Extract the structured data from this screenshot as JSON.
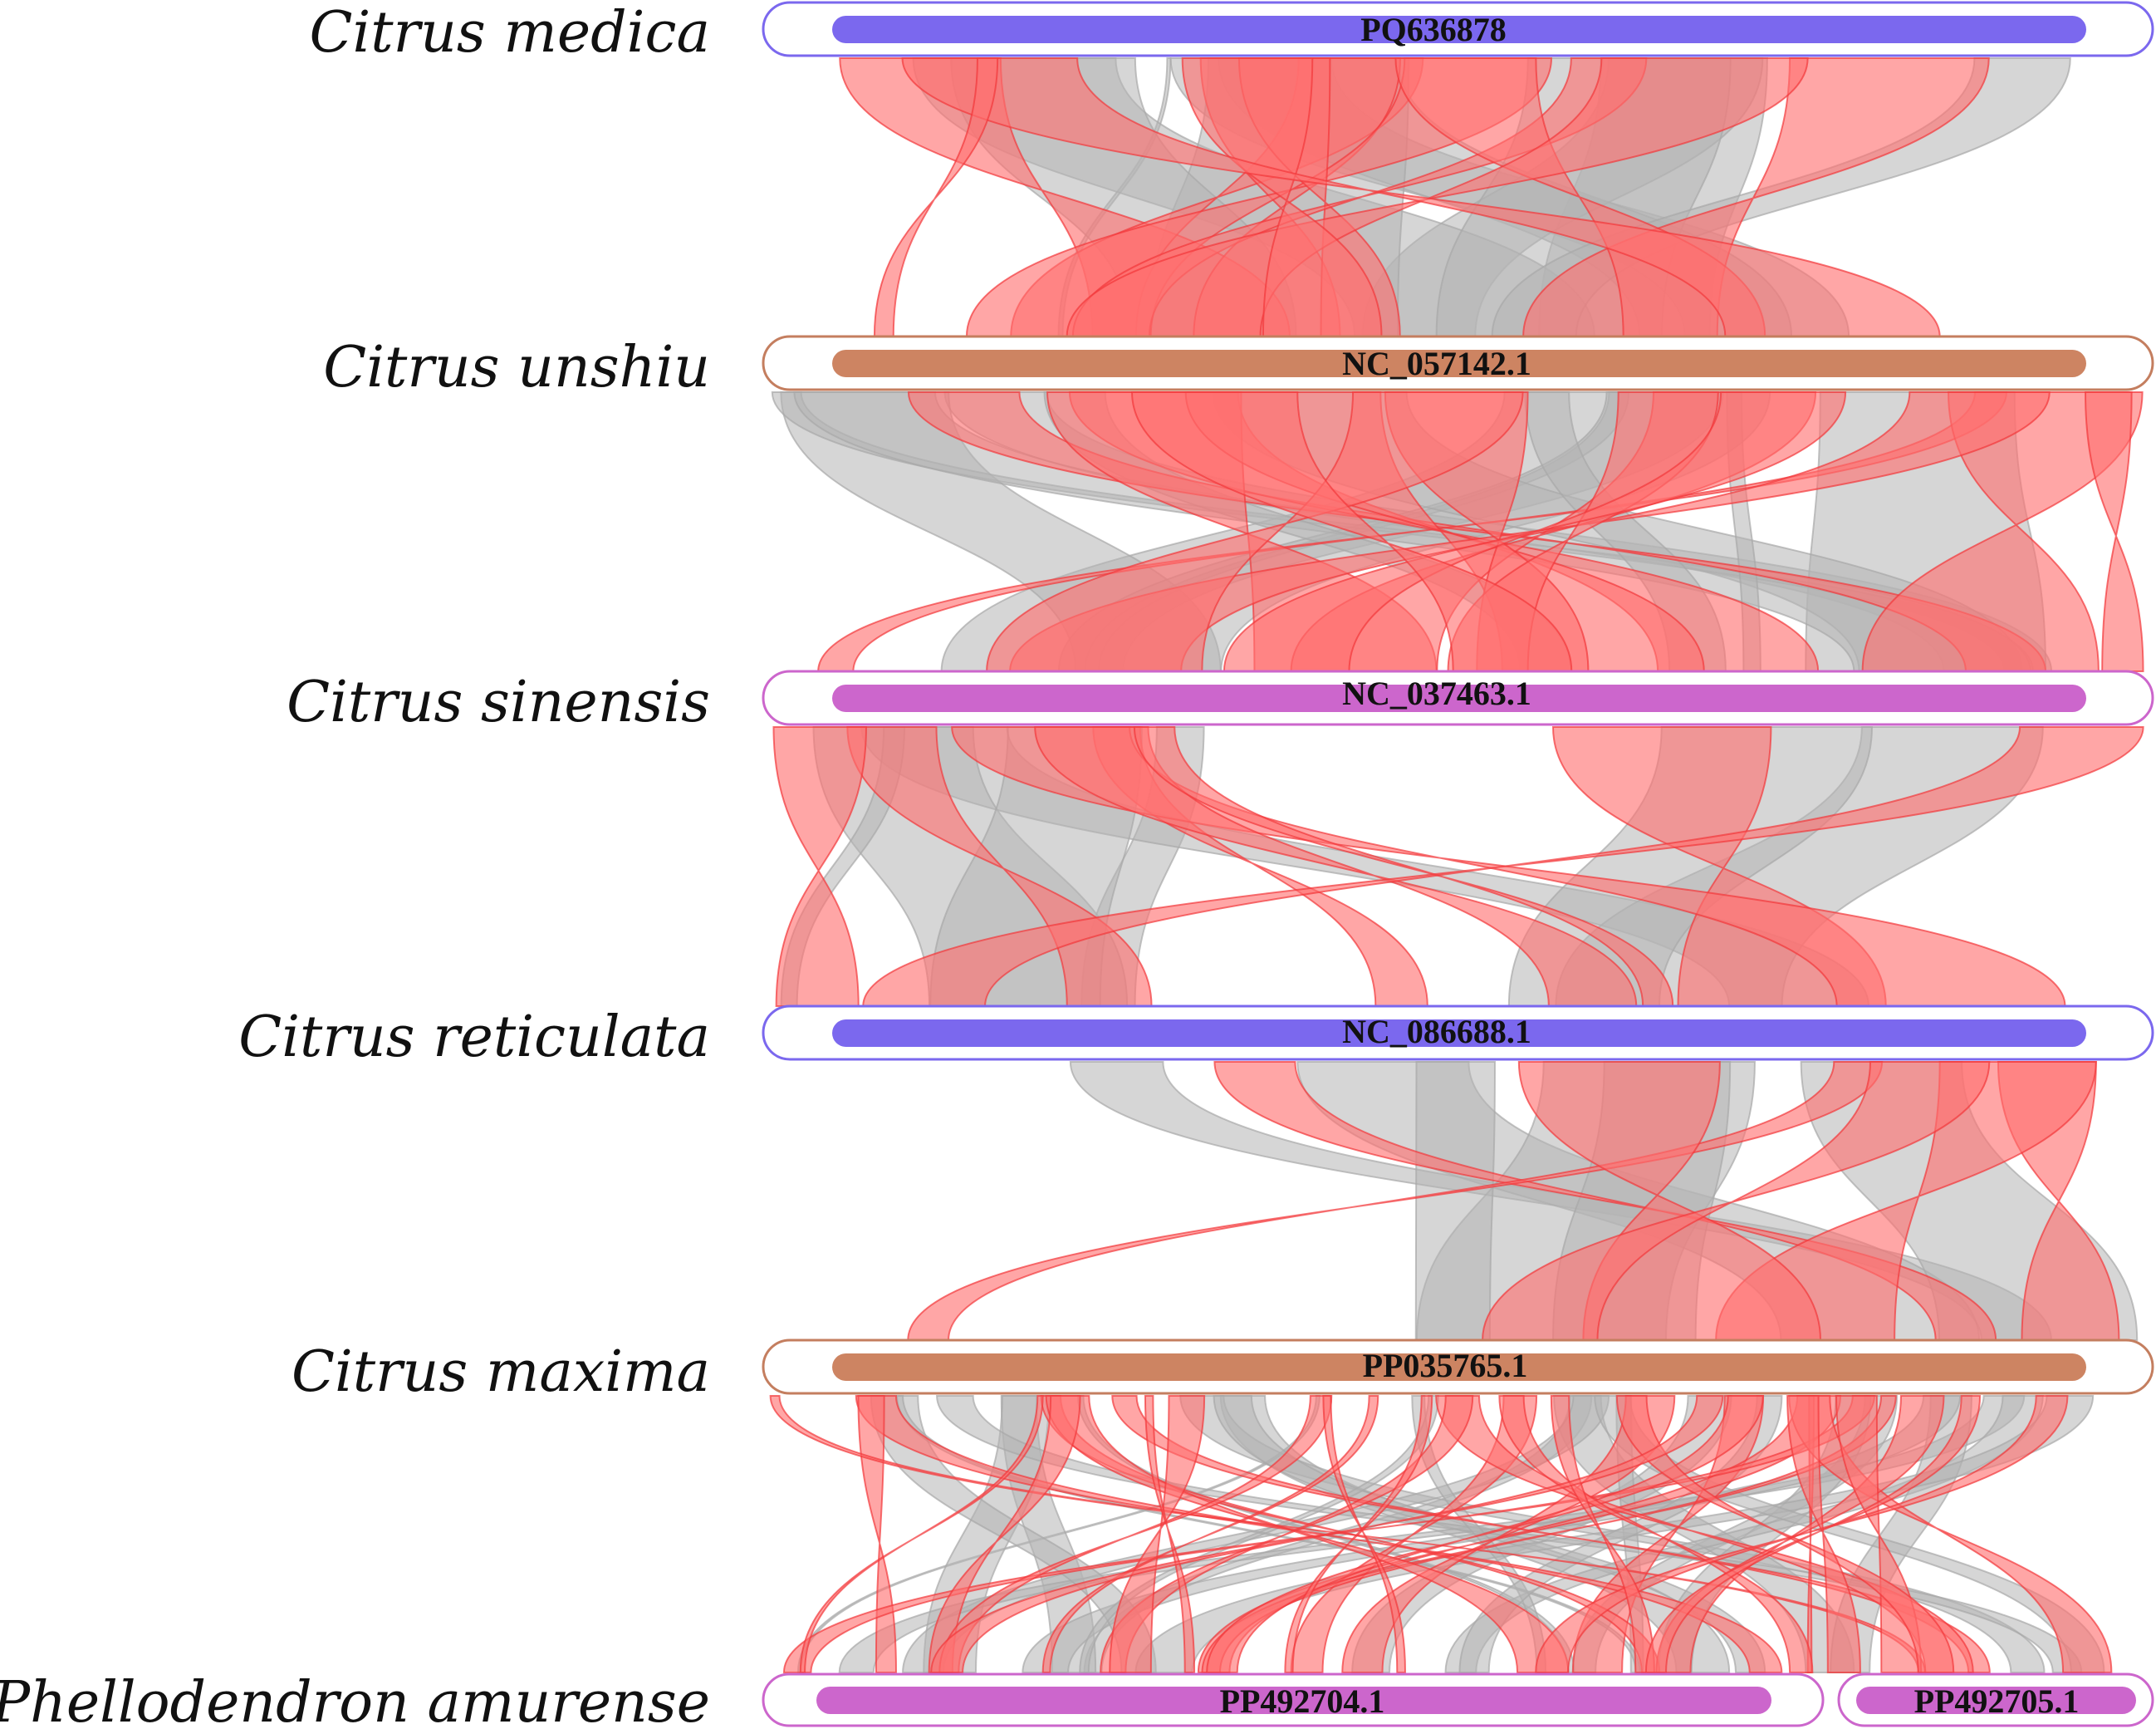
{
  "figure_type": "synteny-ribbon-diagram",
  "colors": {
    "forward_link": "#b4b4b4",
    "inverted_link": "#ff6f6f",
    "inverted_stroke": "#f2383b",
    "track_blue_fill": "#7b68ee",
    "track_orange_fill": "#cd8462",
    "track_purple_fill": "#cc66cc"
  },
  "tracks": [
    {
      "species": "Citrus medica",
      "chromosomes": [
        {
          "name": "PQ636878",
          "fill": "#7b68ee",
          "stroke": "#7b68ee"
        }
      ]
    },
    {
      "species": "Citrus unshiu",
      "chromosomes": [
        {
          "name": "NC_057142.1",
          "fill": "#cd8462",
          "stroke": "#c47e5f"
        }
      ]
    },
    {
      "species": "Citrus sinensis",
      "chromosomes": [
        {
          "name": "NC_037463.1",
          "fill": "#cc66cc",
          "stroke": "#cc66cc"
        }
      ]
    },
    {
      "species": "Citrus reticulata",
      "chromosomes": [
        {
          "name": "NC_086688.1",
          "fill": "#7b68ee",
          "stroke": "#7b68ee"
        }
      ]
    },
    {
      "species": "Citrus maxima",
      "chromosomes": [
        {
          "name": "PP035765.1",
          "fill": "#cd8462",
          "stroke": "#c47e5f"
        }
      ]
    },
    {
      "species": "Phellodendron amurense",
      "chromosomes": [
        {
          "name": "PP492704.1",
          "fill": "#cc66cc",
          "stroke": "#cc66cc"
        },
        {
          "name": "PP492705.1",
          "fill": "#cc66cc",
          "stroke": "#cc66cc"
        }
      ]
    }
  ]
}
